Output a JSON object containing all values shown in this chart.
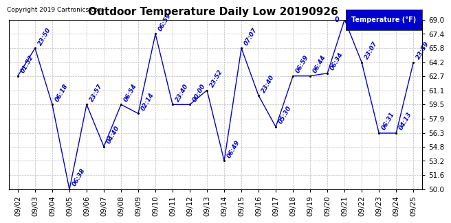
{
  "title": "Outdoor Temperature Daily Low 20190926",
  "copyright": "Copyright 2019 Cartronics.com",
  "legend_label": "Temperature (°F)",
  "ylim": [
    50.0,
    69.0
  ],
  "yticks": [
    50.0,
    51.6,
    53.2,
    54.8,
    56.3,
    57.9,
    59.5,
    61.1,
    62.7,
    64.2,
    65.8,
    67.4,
    69.0
  ],
  "dates": [
    "09/02",
    "09/03",
    "09/04",
    "09/05",
    "09/06",
    "09/07",
    "09/08",
    "09/09",
    "09/10",
    "09/11",
    "09/12",
    "09/13",
    "09/14",
    "09/15",
    "09/16",
    "09/17",
    "09/18",
    "09/19",
    "09/20",
    "09/21",
    "09/22",
    "09/23",
    "09/24",
    "09/25"
  ],
  "values": [
    62.7,
    65.8,
    59.5,
    50.0,
    59.5,
    54.8,
    59.5,
    58.5,
    67.4,
    59.5,
    59.5,
    61.1,
    53.2,
    65.8,
    60.5,
    57.0,
    62.7,
    62.7,
    63.0,
    69.0,
    64.2,
    56.3,
    56.3,
    64.2
  ],
  "times": [
    "01:52",
    "23:50",
    "06:18",
    "06:38",
    "23:57",
    "04:40",
    "06:54",
    "02:14",
    "06:59",
    "23:40",
    "00:00",
    "23:52",
    "06:49",
    "07:07",
    "23:40",
    "05:30",
    "06:59",
    "06:44",
    "06:34",
    "0",
    "23:07",
    "06:31",
    "04:13",
    "23:59"
  ],
  "line_color": "#0000cc",
  "marker_color": "#000000",
  "bg_color": "#ffffff",
  "grid_color": "#bbbbbb",
  "title_fontsize": 11,
  "tick_fontsize": 7.5,
  "annotation_fontsize": 6.5
}
